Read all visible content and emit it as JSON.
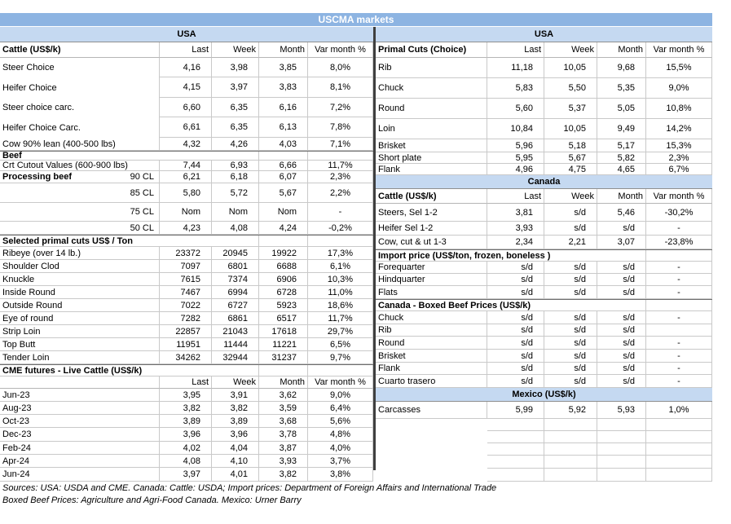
{
  "title": "USCMA markets",
  "col_headers": [
    "Last",
    "Week",
    "Month",
    "Var month %"
  ],
  "colors": {
    "title_band": "#8DB4E2",
    "region_band": "#C5D9F1",
    "grid": "#C9C9C9",
    "divider": "#3F3F3F"
  },
  "footer": {
    "line1": "Sources: USA: USDA and CME. Canada: Cattle: USDA; Import prices: Department of Foreign Affairs and International Trade",
    "line2": "Boxed Beef Prices: Agriculture and Agri-Food Canada. Mexico: Urner Barry"
  },
  "tables": {
    "left": {
      "rows": [
        {
          "t": "band",
          "label": "USA"
        },
        {
          "t": "cols",
          "label": "Cattle (US$/k)"
        },
        {
          "t": "data",
          "label": "Steer Choice",
          "v": [
            "4,16",
            "3,98",
            "3,85",
            "8,0%"
          ]
        },
        {
          "t": "data",
          "label": "Heifer Choice",
          "v": [
            "4,15",
            "3,97",
            "3,83",
            "8,1%"
          ]
        },
        {
          "t": "data",
          "label": "Steer choice carc.",
          "v": [
            "6,60",
            "6,35",
            "6,16",
            "7,2%"
          ]
        },
        {
          "t": "data",
          "label": "Heifer Choice Carc.",
          "v": [
            "6,61",
            "6,35",
            "6,13",
            "7,8%"
          ]
        },
        {
          "t": "data",
          "label": "Cow 90% lean (400-500 lbs)",
          "v": [
            "4,32",
            "4,26",
            "4,03",
            "7,1%"
          ]
        },
        {
          "t": "section",
          "label": "Beef"
        },
        {
          "t": "data",
          "label": "Crt Cutout Values (600-900 lbs)",
          "v": [
            "7,44",
            "6,93",
            "6,66",
            "11,7%"
          ]
        },
        {
          "t": "data",
          "label": "Processing beef",
          "label2": "90 CL",
          "bold": true,
          "v": [
            "6,21",
            "6,18",
            "6,07",
            "2,3%"
          ]
        },
        {
          "t": "data",
          "label": "",
          "label2": "85 CL",
          "v": [
            "5,80",
            "5,72",
            "5,67",
            "2,2%"
          ]
        },
        {
          "t": "data",
          "label": "",
          "label2": "75 CL",
          "v": [
            "Nom",
            "Nom",
            "Nom",
            "-"
          ]
        },
        {
          "t": "data",
          "label": "",
          "label2": "50 CL",
          "v": [
            "4,23",
            "4,08",
            "4,24",
            "-0,2%"
          ]
        },
        {
          "t": "section",
          "label": "Selected primal cuts US$ / Ton"
        },
        {
          "t": "data",
          "label": "Ribeye (over 14 lb.)",
          "v": [
            "23372",
            "20945",
            "19922",
            "17,3%"
          ]
        },
        {
          "t": "data",
          "label": "Shoulder Clod",
          "v": [
            "7097",
            "6801",
            "6688",
            "6,1%"
          ]
        },
        {
          "t": "data",
          "label": "Knuckle",
          "v": [
            "7615",
            "7374",
            "6906",
            "10,3%"
          ]
        },
        {
          "t": "data",
          "label": "Inside Round",
          "v": [
            "7467",
            "6994",
            "6728",
            "11,0%"
          ]
        },
        {
          "t": "data",
          "label": "Outside Round",
          "v": [
            "7022",
            "6727",
            "5923",
            "18,6%"
          ]
        },
        {
          "t": "data",
          "label": "Eye of round",
          "v": [
            "7282",
            "6861",
            "6517",
            "11,7%"
          ]
        },
        {
          "t": "data",
          "label": "Strip Loin",
          "v": [
            "22857",
            "21043",
            "17618",
            "29,7%"
          ]
        },
        {
          "t": "data",
          "label": "Top Butt",
          "v": [
            "11951",
            "11444",
            "11221",
            "6,5%"
          ]
        },
        {
          "t": "data",
          "label": "Tender Loin",
          "v": [
            "34262",
            "32944",
            "31237",
            "9,7%"
          ]
        },
        {
          "t": "section",
          "label": "CME futures - Live Cattle (US$/k)"
        },
        {
          "t": "cols",
          "label": ""
        },
        {
          "t": "data",
          "label": "Jun-23",
          "v": [
            "3,95",
            "3,91",
            "3,62",
            "9,0%"
          ]
        },
        {
          "t": "data",
          "label": "Aug-23",
          "v": [
            "3,82",
            "3,82",
            "3,59",
            "6,4%"
          ]
        },
        {
          "t": "data",
          "label": "Oct-23",
          "v": [
            "3,89",
            "3,89",
            "3,68",
            "5,6%"
          ]
        },
        {
          "t": "data",
          "label": "Dec-23",
          "v": [
            "3,96",
            "3,96",
            "3,78",
            "4,8%"
          ]
        },
        {
          "t": "data",
          "label": "Feb-24",
          "v": [
            "4,02",
            "4,04",
            "3,87",
            "4,0%"
          ]
        },
        {
          "t": "data",
          "label": "Apr-24",
          "v": [
            "4,08",
            "4,10",
            "3,93",
            "3,7%"
          ]
        },
        {
          "t": "data",
          "label": "Jun-24",
          "v": [
            "3,97",
            "4,01",
            "3,82",
            "3,8%"
          ]
        }
      ]
    },
    "right": {
      "rows": [
        {
          "t": "band",
          "label": "USA"
        },
        {
          "t": "cols",
          "label": "Primal Cuts (Choice)"
        },
        {
          "t": "data",
          "label": "Rib",
          "v": [
            "11,18",
            "10,05",
            "9,68",
            "15,5%"
          ]
        },
        {
          "t": "data",
          "label": "Chuck",
          "v": [
            "5,83",
            "5,50",
            "5,35",
            "9,0%"
          ]
        },
        {
          "t": "data",
          "label": "Round",
          "v": [
            "5,60",
            "5,37",
            "5,05",
            "10,8%"
          ]
        },
        {
          "t": "data",
          "label": "Loin",
          "v": [
            "10,84",
            "10,05",
            "9,49",
            "14,2%"
          ]
        },
        {
          "t": "data",
          "label": "Brisket",
          "v": [
            "5,96",
            "5,18",
            "5,17",
            "15,3%"
          ]
        },
        {
          "t": "data",
          "label": "Short plate",
          "v": [
            "5,95",
            "5,67",
            "5,82",
            "2,3%"
          ]
        },
        {
          "t": "data",
          "label": "Flank",
          "v": [
            "4,96",
            "4,75",
            "4,65",
            "6,7%"
          ]
        },
        {
          "t": "band",
          "label": "Canada"
        },
        {
          "t": "cols",
          "label": "Cattle (US$/k)"
        },
        {
          "t": "data",
          "label": "Steers, Sel 1-2",
          "v": [
            "3,81",
            "s/d",
            "5,46",
            "-30,2%"
          ]
        },
        {
          "t": "data",
          "label": "Heifer Sel 1-2",
          "v": [
            "3,93",
            "s/d",
            "s/d",
            "-"
          ]
        },
        {
          "t": "data",
          "label": "Cow, cut & ut 1-3",
          "v": [
            "2,34",
            "2,21",
            "3,07",
            "-23,8%"
          ]
        },
        {
          "t": "section",
          "label": "Import price (US$/ton, frozen, boneless )"
        },
        {
          "t": "data",
          "label": "Forequarter",
          "v": [
            "s/d",
            "s/d",
            "s/d",
            "-"
          ]
        },
        {
          "t": "data",
          "label": "Hindquarter",
          "v": [
            "s/d",
            "s/d",
            "s/d",
            "-"
          ]
        },
        {
          "t": "data",
          "label": "Flats",
          "v": [
            "s/d",
            "s/d",
            "s/d",
            "-"
          ]
        },
        {
          "t": "section",
          "label": "Canada - Boxed Beef Prices (US$/k)"
        },
        {
          "t": "data",
          "label": "Chuck",
          "v": [
            "s/d",
            "s/d",
            "s/d",
            "-"
          ]
        },
        {
          "t": "data",
          "label": "Rib",
          "v": [
            "s/d",
            "s/d",
            "s/d",
            ""
          ]
        },
        {
          "t": "data",
          "label": "Round",
          "v": [
            "s/d",
            "s/d",
            "s/d",
            "-"
          ]
        },
        {
          "t": "data",
          "label": "Brisket",
          "v": [
            "s/d",
            "s/d",
            "s/d",
            "-"
          ]
        },
        {
          "t": "data",
          "label": "Flank",
          "v": [
            "s/d",
            "s/d",
            "s/d",
            "-"
          ]
        },
        {
          "t": "data",
          "label": "Cuarto trasero",
          "v": [
            "s/d",
            "s/d",
            "s/d",
            "-"
          ]
        },
        {
          "t": "band",
          "label": "Mexico (US$/k)"
        },
        {
          "t": "data",
          "label": "Carcasses",
          "v": [
            "5,99",
            "5,92",
            "5,93",
            "1,0%"
          ]
        },
        {
          "t": "blank"
        },
        {
          "t": "blank"
        },
        {
          "t": "blank"
        },
        {
          "t": "blank"
        },
        {
          "t": "blank"
        }
      ]
    }
  }
}
